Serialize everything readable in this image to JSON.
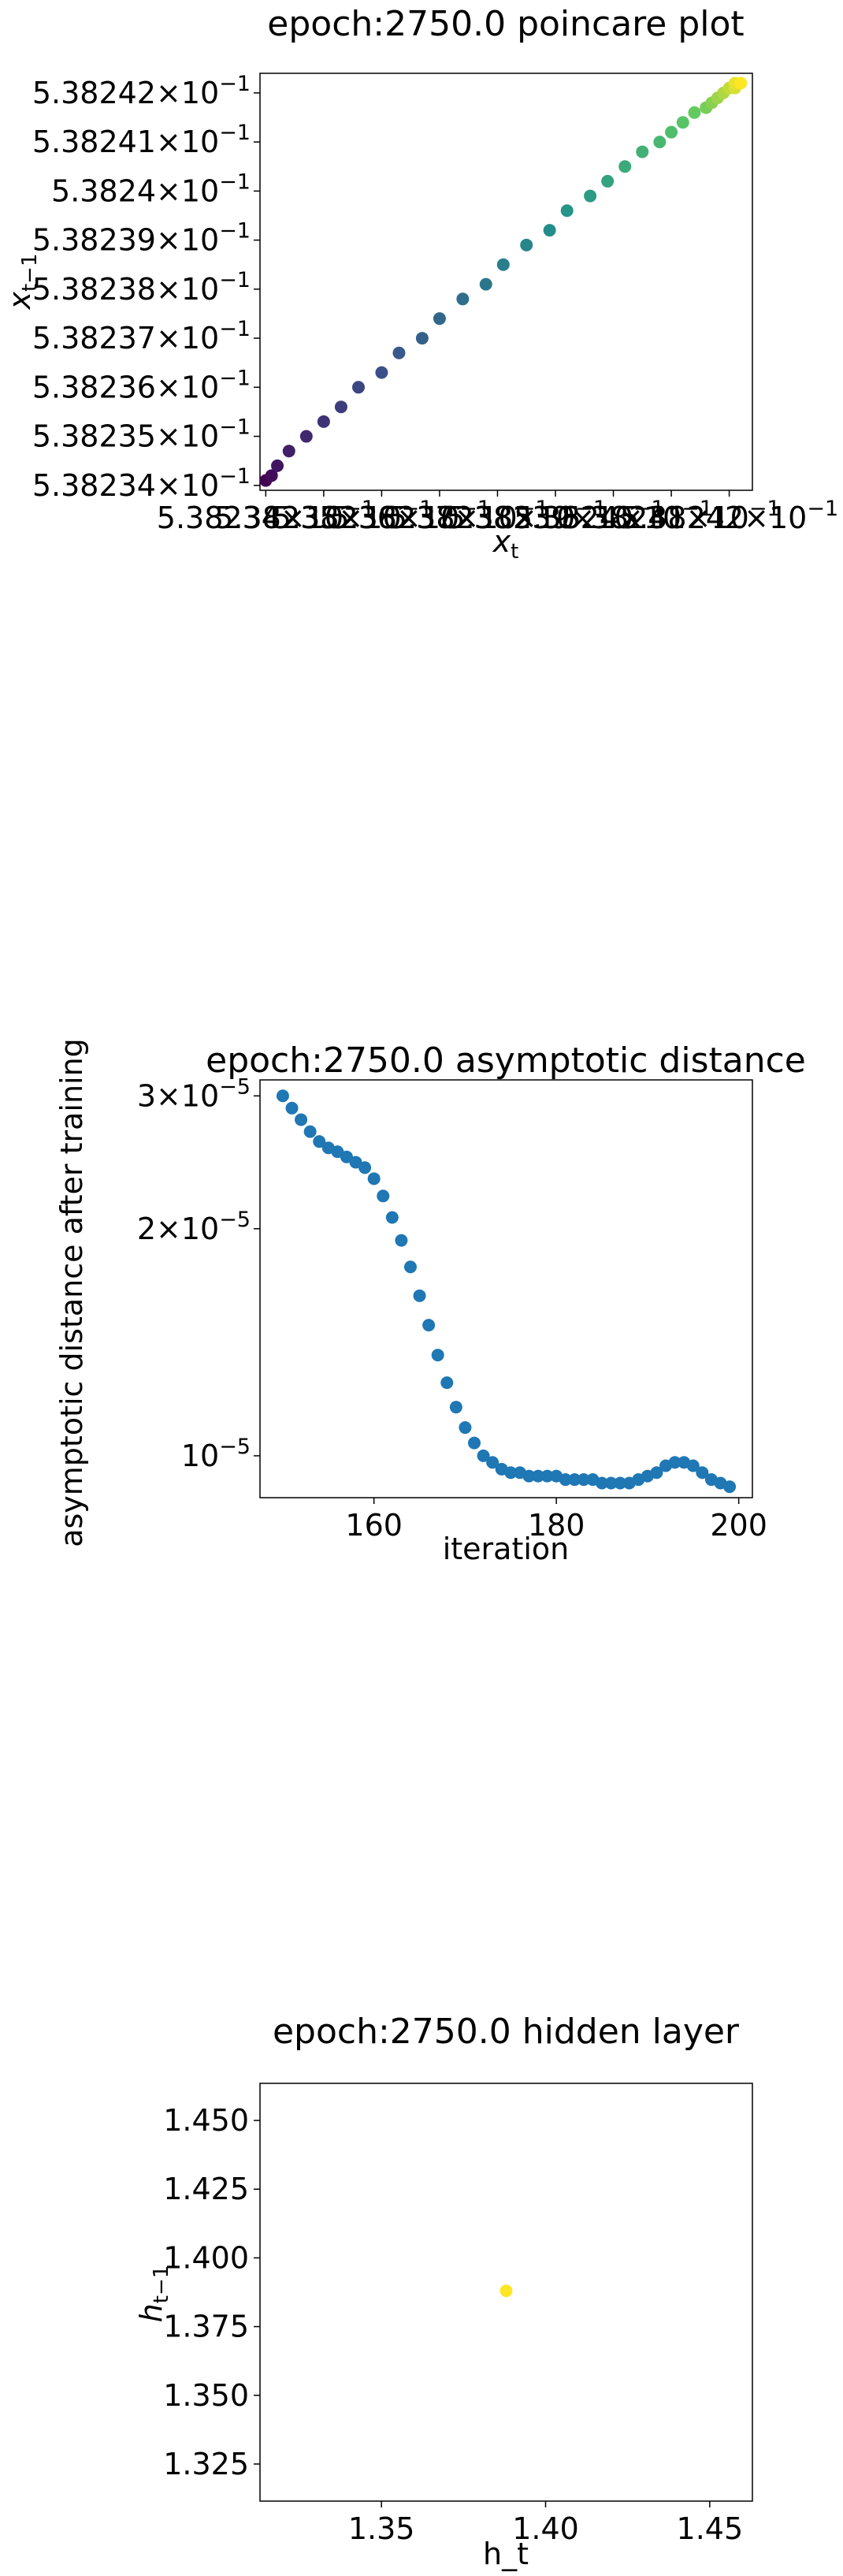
{
  "chart_data": [
    {
      "type": "scatter",
      "title": "epoch:2750.0 poincare plot",
      "xlabel": "x",
      "xlabel_sub": "t",
      "ylabel": "x",
      "ylabel_sub": "t−1",
      "colormap": "viridis",
      "x_scale": "log",
      "y_scale": "log",
      "ytick_mantissas": [
        "5.38234",
        "5.38235",
        "5.38236",
        "5.38237",
        "5.38238",
        "5.38239",
        "5.3824",
        "5.38241",
        "5.38242"
      ],
      "xtick_labels_overlapping": [
        "5.38234",
        "5.38235",
        "5.38236",
        "5.38237",
        "5.38238",
        "5.38239",
        "5.3824",
        "5.38241",
        "5.38242"
      ],
      "tick_exponent": "−1",
      "tick_suffix": "×10",
      "xlim": [
        0.5382339,
        0.5382424
      ],
      "ylim": [
        0.5382339,
        0.5382424
      ],
      "x": [
        0.538234,
        0.5382341,
        0.5382342,
        0.5382344,
        0.5382347,
        0.538235,
        0.5382353,
        0.5382356,
        0.538236,
        0.5382363,
        0.5382367,
        0.538237,
        0.5382374,
        0.5382378,
        0.5382381,
        0.5382385,
        0.5382389,
        0.5382392,
        0.5382396,
        0.5382399,
        0.5382402,
        0.5382405,
        0.5382408,
        0.538241,
        0.5382412,
        0.5382414,
        0.5382416,
        0.5382417,
        0.5382418,
        0.5382419,
        0.538242,
        0.5382421,
        0.5382421,
        0.5382422
      ],
      "y": [
        0.5382341,
        0.5382342,
        0.5382344,
        0.5382347,
        0.538235,
        0.5382353,
        0.5382356,
        0.538236,
        0.5382363,
        0.5382367,
        0.538237,
        0.5382374,
        0.5382378,
        0.5382381,
        0.5382385,
        0.5382389,
        0.5382392,
        0.5382396,
        0.5382399,
        0.5382402,
        0.5382405,
        0.5382408,
        0.538241,
        0.5382412,
        0.5382414,
        0.5382416,
        0.5382417,
        0.5382418,
        0.5382419,
        0.538242,
        0.5382421,
        0.5382421,
        0.5382422,
        0.5382422
      ]
    },
    {
      "type": "scatter",
      "title": "epoch:2750.0 asymptotic distance",
      "xlabel": "iteration",
      "ylabel": "asymptotic distance after training",
      "color": "#1f77b4",
      "y_scale": "log",
      "xlim": [
        147.5,
        201.5
      ],
      "ylim": [
        8.8e-06,
        3.15e-05
      ],
      "xticks": [
        160,
        180,
        200
      ],
      "yticks": [
        {
          "value": 3e-05,
          "mantissa": "3",
          "exponent": "−5",
          "prefix": "×10"
        },
        {
          "value": 2e-05,
          "mantissa": "2",
          "exponent": "−5",
          "prefix": "×10"
        },
        {
          "value": 1e-05,
          "mantissa": "",
          "exponent": "−5",
          "prefix": "10"
        }
      ],
      "x": [
        150,
        151,
        152,
        153,
        154,
        155,
        156,
        157,
        158,
        159,
        160,
        161,
        162,
        163,
        164,
        165,
        166,
        167,
        168,
        169,
        170,
        171,
        172,
        173,
        174,
        175,
        176,
        177,
        178,
        179,
        180,
        181,
        182,
        183,
        184,
        185,
        186,
        187,
        188,
        189,
        190,
        191,
        192,
        193,
        194,
        195,
        196,
        197,
        198,
        199
      ],
      "y": [
        3e-05,
        2.89e-05,
        2.79e-05,
        2.69e-05,
        2.61e-05,
        2.56e-05,
        2.53e-05,
        2.49e-05,
        2.45e-05,
        2.41e-05,
        2.33e-05,
        2.21e-05,
        2.07e-05,
        1.93e-05,
        1.78e-05,
        1.63e-05,
        1.49e-05,
        1.36e-05,
        1.25e-05,
        1.16e-05,
        1.09e-05,
        1.04e-05,
        1e-05,
        9.8e-06,
        9.6e-06,
        9.5e-06,
        9.5e-06,
        9.4e-06,
        9.4e-06,
        9.4e-06,
        9.4e-06,
        9.3e-06,
        9.3e-06,
        9.3e-06,
        9.3e-06,
        9.2e-06,
        9.2e-06,
        9.2e-06,
        9.2e-06,
        9.3e-06,
        9.4e-06,
        9.5e-06,
        9.7e-06,
        9.8e-06,
        9.8e-06,
        9.7e-06,
        9.5e-06,
        9.3e-06,
        9.2e-06,
        9.1e-06
      ]
    },
    {
      "type": "scatter",
      "title": "epoch:2750.0 hidden layer",
      "xlabel": "h_t",
      "ylabel": "h",
      "ylabel_sub": "t−1",
      "color": "#fde725",
      "xlim": [
        1.313,
        1.463
      ],
      "ylim": [
        1.3115,
        1.4635
      ],
      "xticks": [
        "1.35",
        "1.40",
        "1.45"
      ],
      "yticks": [
        "1.325",
        "1.350",
        "1.375",
        "1.400",
        "1.425",
        "1.450"
      ],
      "x": [
        1.388
      ],
      "y": [
        1.388
      ]
    }
  ]
}
